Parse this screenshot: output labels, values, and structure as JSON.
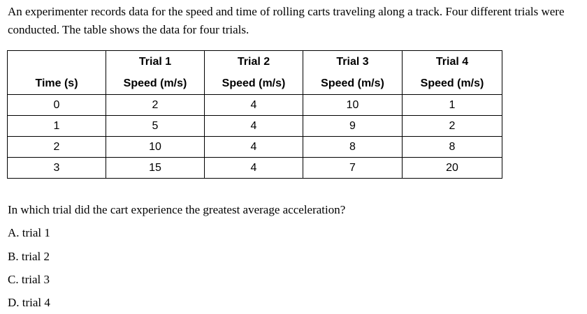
{
  "intro_text": "An experimenter records data for the speed and time of rolling carts traveling along a track. Four different trials were conducted. The table shows the data for four trials.",
  "table": {
    "trial_headers": [
      "Trial 1",
      "Trial 2",
      "Trial 3",
      "Trial 4"
    ],
    "time_header": "Time (s)",
    "speed_header": "Speed (m/s)",
    "rows": [
      [
        "0",
        "2",
        "4",
        "10",
        "1"
      ],
      [
        "1",
        "5",
        "4",
        "9",
        "2"
      ],
      [
        "2",
        "10",
        "4",
        "8",
        "8"
      ],
      [
        "3",
        "15",
        "4",
        "7",
        "20"
      ]
    ]
  },
  "question": "In which trial did the cart experience the greatest average acceleration?",
  "options": [
    {
      "letter": "A.",
      "text": "trial 1"
    },
    {
      "letter": "B.",
      "text": "trial 2"
    },
    {
      "letter": "C.",
      "text": "trial 3"
    },
    {
      "letter": "D.",
      "text": "trial 4"
    }
  ]
}
